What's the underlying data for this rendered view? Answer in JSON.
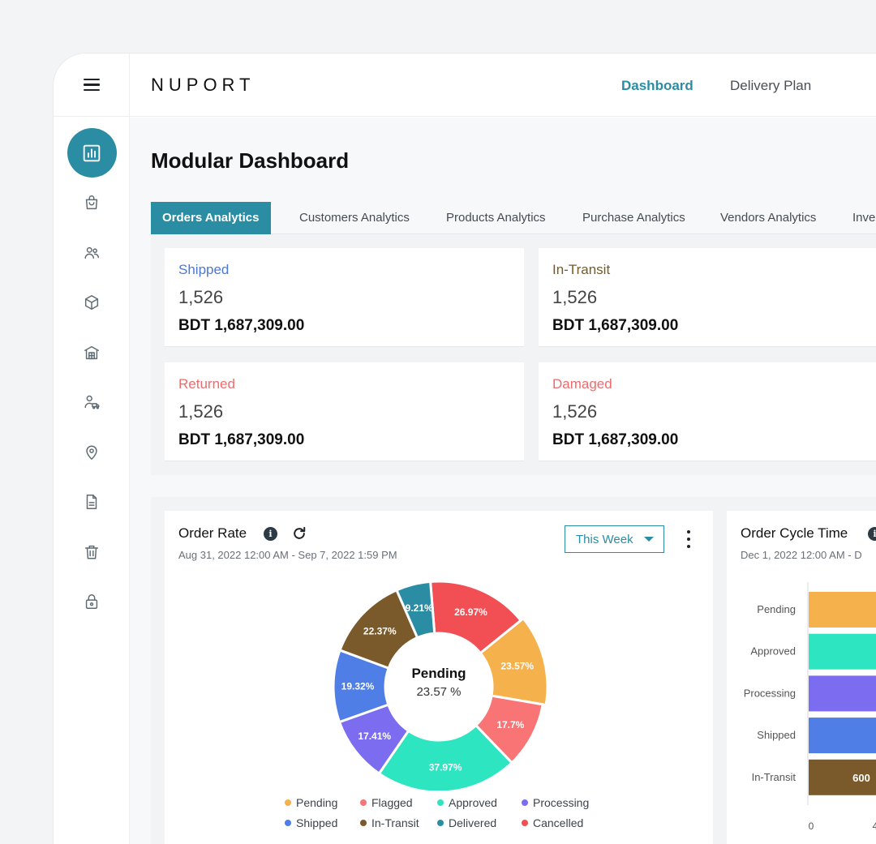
{
  "brand": "NUPORT",
  "nav": [
    "Dashboard",
    "Delivery Plan"
  ],
  "page_title": "Modular Dashboard",
  "tabs": [
    "Orders Analytics",
    "Customers Analytics",
    "Products Analytics",
    "Purchase Analytics",
    "Vendors Analytics",
    "Inve"
  ],
  "sidebar_icons": [
    "chart-icon",
    "shopping-bag-icon",
    "users-icon",
    "box-icon",
    "warehouse-icon",
    "user-truck-icon",
    "location-pin-icon",
    "document-icon",
    "trash-icon",
    "lock-icon"
  ],
  "stats": [
    {
      "label": "Shipped",
      "count": "1,526",
      "amount": "BDT 1,687,309.00",
      "color": "#4a78d6"
    },
    {
      "label": "In-Transit",
      "count": "1,526",
      "amount": "BDT 1,687,309.00",
      "color": "#7a5a1f"
    },
    {
      "label": "Returned",
      "count": "1,526",
      "amount": "BDT 1,687,309.00",
      "color": "#ef6b6b"
    },
    {
      "label": "Damaged",
      "count": "1,526",
      "amount": "BDT 1,687,309.00",
      "color": "#ef6b6b"
    }
  ],
  "order_rate": {
    "title": "Order Rate",
    "date_range": "Aug 31, 2022 12:00 AM - Sep 7, 2022 1:59 PM",
    "period": "This Week",
    "center_label": "Pending",
    "center_value": "23.57 %",
    "legend": [
      {
        "name": "Pending",
        "color": "#f5b14c"
      },
      {
        "name": "Flagged",
        "color": "#f97474"
      },
      {
        "name": "Approved",
        "color": "#2ee5c1"
      },
      {
        "name": "Processing",
        "color": "#7b6cf0"
      },
      {
        "name": "Shipped",
        "color": "#4f7ee6"
      },
      {
        "name": "In-Transit",
        "color": "#7a5a2a"
      },
      {
        "name": "Delivered",
        "color": "#2a8da3"
      },
      {
        "name": "Cancelled",
        "color": "#f24f54"
      }
    ]
  },
  "order_cycle": {
    "title": "Order Cycle Time",
    "date_range": "Dec 1, 2022 12:00 AM - D",
    "x_tick_zero": "0",
    "x_tick_next": "4"
  },
  "chart_data": [
    {
      "type": "pie",
      "slices": [
        {
          "label": "Cancelled",
          "value": 26.97,
          "text": "26.97%",
          "color": "#f24f54"
        },
        {
          "label": "Pending",
          "value": 23.57,
          "text": "23.57%",
          "color": "#f5b14c"
        },
        {
          "label": "Flagged",
          "value": 17.7,
          "text": "17.7%",
          "color": "#f97474"
        },
        {
          "label": "Approved",
          "value": 37.97,
          "text": "37.97%",
          "color": "#2ee5c1"
        },
        {
          "label": "Processing",
          "value": 17.41,
          "text": "17.41%",
          "color": "#7b6cf0"
        },
        {
          "label": "Shipped",
          "value": 19.32,
          "text": "19.32%",
          "color": "#4f7ee6"
        },
        {
          "label": "In-Transit",
          "value": 22.37,
          "text": "22.37%",
          "color": "#7a5a2a"
        },
        {
          "label": "Delivered",
          "value": 9.21,
          "text": "9.21%",
          "color": "#2a8da3"
        }
      ]
    },
    {
      "type": "bar",
      "orientation": "horizontal",
      "categories": [
        "Pending",
        "Approved",
        "Processing",
        "Shipped",
        "In-Transit"
      ],
      "colors": [
        "#f5b14c",
        "#2ee5c1",
        "#7b6cf0",
        "#4f7ee6",
        "#7a5a2a"
      ],
      "values": [
        null,
        null,
        null,
        null,
        600
      ],
      "value_labels": [
        "",
        "",
        "",
        "",
        "600"
      ]
    }
  ]
}
